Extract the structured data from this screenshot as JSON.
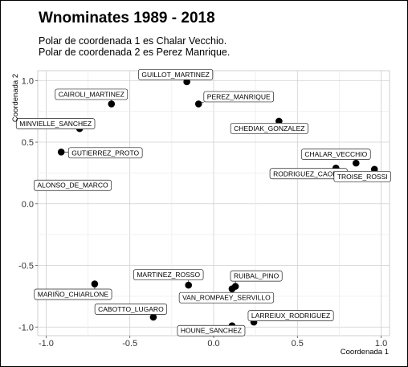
{
  "title": "Wnominates 1989 - 2018",
  "subtitle_line1": "Polar de coordenada 1 es Chalar Vecchio.",
  "subtitle_line2": "Polar de coordenada 2 es Perez Manrique.",
  "chart_data": {
    "type": "scatter",
    "xlabel": "Coordenada 1",
    "ylabel": "Coordenada 2",
    "xlim": [
      -1.05,
      1.05
    ],
    "ylim": [
      -1.07,
      1.08
    ],
    "xticks": [
      -1.0,
      -0.5,
      0.0,
      0.5,
      1.0
    ],
    "yticks": [
      -1.0,
      -0.5,
      0.0,
      0.5,
      1.0
    ],
    "xtick_labels": [
      "-1.0",
      "-0.5",
      "0.0",
      "0.5",
      "1.0"
    ],
    "ytick_labels": [
      "-1.0",
      "-0.5",
      "0.0",
      "0.5",
      "1.0"
    ],
    "grid": true,
    "points": [
      {
        "label": "GUILLOT_MARTINEZ",
        "x": -0.16,
        "y": 0.99
      },
      {
        "label": "PEREZ_MANRIQUE",
        "x": -0.09,
        "y": 0.81
      },
      {
        "label": "CAIROLI_MARTINEZ",
        "x": -0.61,
        "y": 0.81
      },
      {
        "label": "MINVIELLE_SANCHEZ",
        "x": -0.8,
        "y": 0.61
      },
      {
        "label": "GUTIERREZ_PROTO",
        "x": -0.91,
        "y": 0.42
      },
      {
        "label": "ALONSO_DE_MARCO",
        "x": -0.99,
        "y": 0.15
      },
      {
        "label": "CHEDIAK_GONZALEZ",
        "x": 0.39,
        "y": 0.67
      },
      {
        "label": "CHALAR_VECCHIO",
        "x": 0.85,
        "y": 0.33
      },
      {
        "label": "RODRIGUEZ_CAORSI",
        "x": 0.73,
        "y": 0.29
      },
      {
        "label": "TROISE_ROSSI",
        "x": 0.96,
        "y": 0.28
      },
      {
        "label": "MARTINEZ_ROSSO",
        "x": -0.15,
        "y": -0.66
      },
      {
        "label": "RUIBAL_PINO",
        "x": 0.13,
        "y": -0.67
      },
      {
        "label": "MARIÑO_CHIARLONE",
        "x": -0.71,
        "y": -0.65
      },
      {
        "label": "CABOTTO_LUGARO",
        "x": -0.36,
        "y": -0.92
      },
      {
        "label": "VAN_ROMPAEY_SERVILLO",
        "x": 0.11,
        "y": -0.69
      },
      {
        "label": "LARREIUX_RODRIGUEZ",
        "x": 0.24,
        "y": -0.96
      },
      {
        "label": "HOUNE_SANCHEZ",
        "x": 0.11,
        "y": -0.99
      }
    ]
  }
}
